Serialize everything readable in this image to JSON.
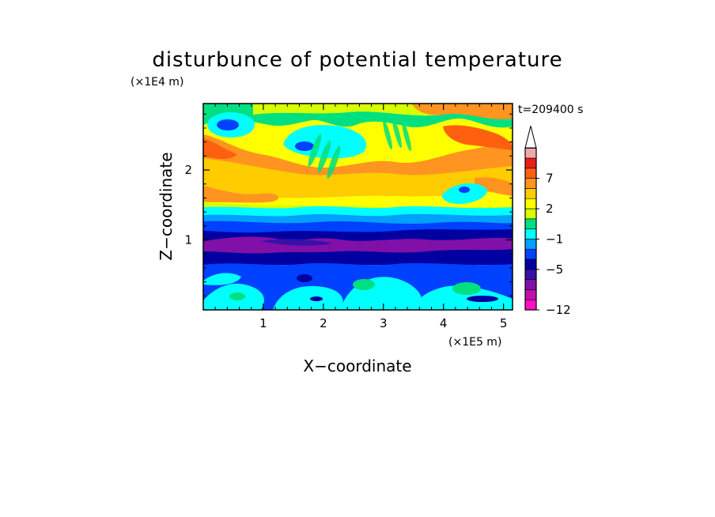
{
  "chart_data": {
    "type": "heatmap",
    "title": "disturbunce of potential temperature",
    "time_label": "t=209400 s",
    "xlabel": "X−coordinate",
    "ylabel": "Z−coordinate",
    "x_unit": "(×1E5 m)",
    "y_unit": "(×1E4 m)",
    "xlim": [
      0,
      5.15
    ],
    "ylim": [
      0,
      2.95
    ],
    "x_ticks": [
      "1",
      "2",
      "3",
      "4",
      "5"
    ],
    "y_ticks": [
      "1",
      "2"
    ],
    "colorbar": {
      "levels": [
        -12,
        -11,
        -9,
        -7,
        -5,
        -3,
        -2,
        -1,
        0,
        1,
        2,
        3,
        5,
        7,
        9,
        11
      ],
      "colors": [
        "#ff10c0",
        "#c010b0",
        "#8010a8",
        "#3810a8",
        "#0000a0",
        "#0040ff",
        "#00a0ff",
        "#00ffff",
        "#00e080",
        "#d8ff00",
        "#ffff00",
        "#ffcc00",
        "#ff9420",
        "#ff6010",
        "#e82018",
        "#f0a8a8"
      ],
      "tick_labels": [
        "7",
        "2",
        "−1",
        "−5",
        "−12"
      ],
      "extend": "max"
    },
    "layers": [
      {
        "z": [
          2.55,
          2.95
        ],
        "range": "-1 to 3",
        "description": "upper layer, mixed green/yellow/orange with cyan pockets"
      },
      {
        "z": [
          1.45,
          2.55
        ],
        "range": "0 to 9",
        "description": "warm layer, orange/yellow waves with gravity wave pattern near x=1.5-3.5"
      },
      {
        "z": [
          1.3,
          1.45
        ],
        "range": "-2 to -1",
        "description": "thin cyan/blue transition band"
      },
      {
        "z": [
          1.05,
          1.3
        ],
        "range": "-5 to -3",
        "description": "cold dark blue layer"
      },
      {
        "z": [
          0.85,
          1.05
        ],
        "range": "-9 to -5",
        "description": "coldest purple band"
      },
      {
        "z": [
          0.55,
          0.85
        ],
        "range": "-5 to -3",
        "description": "dark blue layer"
      },
      {
        "z": [
          0.0,
          0.55
        ],
        "range": "-3 to 1",
        "description": "lower blue/cyan layer with green patches"
      }
    ]
  }
}
